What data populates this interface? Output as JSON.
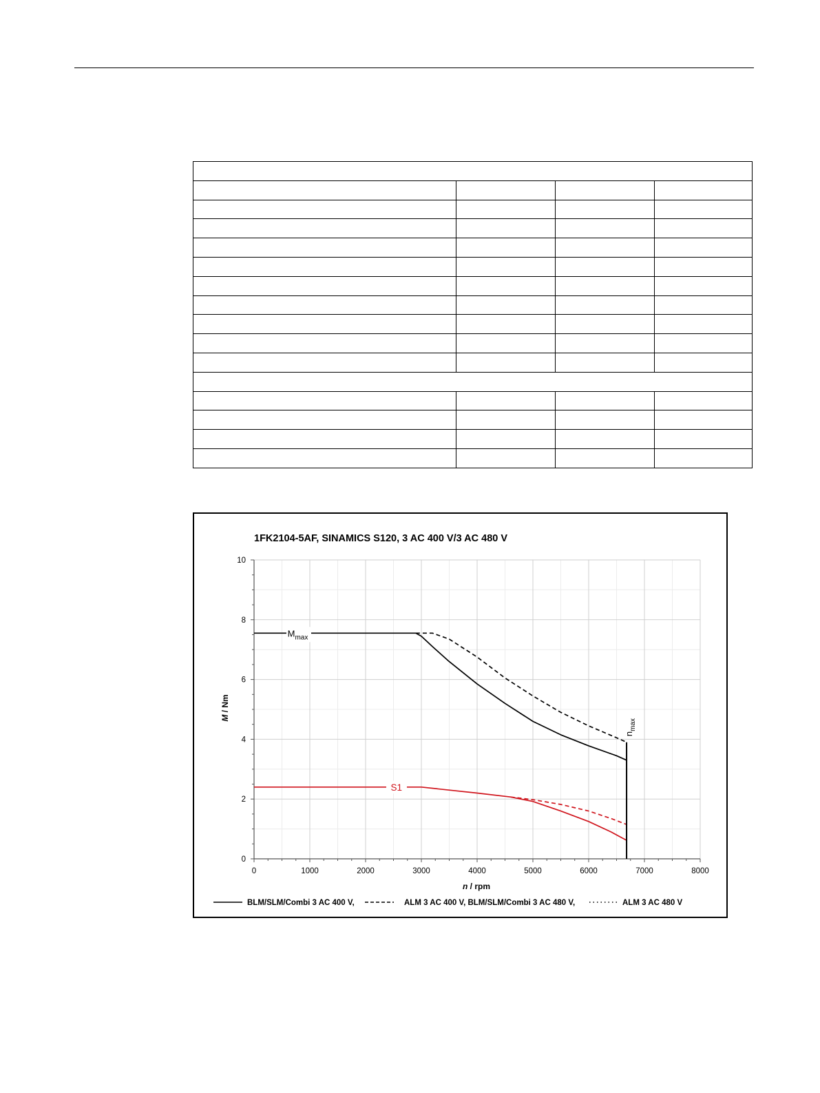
{
  "table": {
    "rows": [
      {
        "type": "full",
        "cells": [
          ""
        ]
      },
      {
        "type": "split",
        "cells": [
          "",
          "",
          "",
          ""
        ]
      },
      {
        "type": "split",
        "cells": [
          "",
          "",
          "",
          ""
        ]
      },
      {
        "type": "split",
        "cells": [
          "",
          "",
          "",
          ""
        ]
      },
      {
        "type": "split",
        "cells": [
          "",
          "",
          "",
          ""
        ]
      },
      {
        "type": "split",
        "cells": [
          "",
          "",
          "",
          ""
        ]
      },
      {
        "type": "split",
        "cells": [
          "",
          "",
          "",
          ""
        ]
      },
      {
        "type": "split",
        "cells": [
          "",
          "",
          "",
          ""
        ]
      },
      {
        "type": "split",
        "cells": [
          "",
          "",
          "",
          ""
        ]
      },
      {
        "type": "split",
        "cells": [
          "",
          "",
          "",
          ""
        ]
      },
      {
        "type": "split",
        "cells": [
          "",
          "",
          "",
          ""
        ]
      },
      {
        "type": "full",
        "cells": [
          ""
        ]
      },
      {
        "type": "split",
        "cells": [
          "",
          "",
          "",
          ""
        ]
      },
      {
        "type": "split",
        "cells": [
          "",
          "",
          "",
          ""
        ]
      },
      {
        "type": "split",
        "cells": [
          "",
          "",
          "",
          ""
        ]
      },
      {
        "type": "split",
        "cells": [
          "",
          "",
          "",
          ""
        ]
      }
    ]
  },
  "chart_data": {
    "type": "line",
    "title": "1FK2104-5AF,  SINAMICS S120,  3 AC 400 V/3 AC 480 V",
    "xlabel_italic": "n",
    "xlabel_rest": " / rpm",
    "ylabel_italic": "M",
    "ylabel_rest": " / Nm",
    "xlim": [
      0,
      8000
    ],
    "ylim": [
      0,
      10
    ],
    "xticks": [
      0,
      1000,
      2000,
      3000,
      4000,
      5000,
      6000,
      7000,
      8000
    ],
    "yticks": [
      0,
      2,
      4,
      6,
      8,
      10
    ],
    "grid": true,
    "series": [
      {
        "name": "BLM/SLM/Combi 3 AC 400 V,",
        "curve": "Mmax",
        "color": "#000000",
        "style": "solid",
        "points": [
          [
            0,
            7.55
          ],
          [
            2900,
            7.55
          ],
          [
            3000,
            7.45
          ],
          [
            3200,
            7.1
          ],
          [
            3500,
            6.6
          ],
          [
            4000,
            5.85
          ],
          [
            4500,
            5.2
          ],
          [
            5000,
            4.6
          ],
          [
            5500,
            4.15
          ],
          [
            6000,
            3.78
          ],
          [
            6500,
            3.45
          ],
          [
            6680,
            3.3
          ]
        ]
      },
      {
        "name": "ALM 3 AC 400 V, BLM/SLM/Combi 3 AC 480 V,",
        "curve": "Mmax",
        "color": "#000000",
        "style": "dashed",
        "points": [
          [
            2900,
            7.55
          ],
          [
            3200,
            7.55
          ],
          [
            3500,
            7.35
          ],
          [
            4000,
            6.75
          ],
          [
            4500,
            6.05
          ],
          [
            5000,
            5.45
          ],
          [
            5500,
            4.9
          ],
          [
            6000,
            4.45
          ],
          [
            6500,
            4.05
          ],
          [
            6680,
            3.9
          ]
        ]
      },
      {
        "name": "BLM/SLM/Combi 3 AC 400 V,",
        "curve": "S1",
        "color": "#d0141c",
        "style": "solid",
        "points": [
          [
            0,
            2.4
          ],
          [
            3000,
            2.4
          ],
          [
            3500,
            2.3
          ],
          [
            4000,
            2.2
          ],
          [
            4600,
            2.07
          ],
          [
            5000,
            1.92
          ],
          [
            5500,
            1.6
          ],
          [
            6000,
            1.25
          ],
          [
            6400,
            0.9
          ],
          [
            6680,
            0.62
          ]
        ]
      },
      {
        "name": "ALM 3 AC 400 V, BLM/SLM/Combi 3 AC 480 V,",
        "curve": "S1",
        "color": "#d0141c",
        "style": "dashed",
        "points": [
          [
            4600,
            2.07
          ],
          [
            5000,
            1.98
          ],
          [
            5500,
            1.82
          ],
          [
            6000,
            1.6
          ],
          [
            6400,
            1.35
          ],
          [
            6680,
            1.15
          ]
        ]
      }
    ],
    "nmax_line": {
      "x": 6680,
      "y_top": 3.9
    },
    "annotations": {
      "mmax_main": "M",
      "mmax_sub": "max",
      "s1": "S1",
      "nmax_main": "n",
      "nmax_sub": "max"
    },
    "legend": {
      "position": "bottom",
      "entries": [
        {
          "style": "solid",
          "label": "BLM/SLM/Combi 3 AC 400 V,"
        },
        {
          "style": "dashed",
          "label": "ALM 3 AC 400 V, BLM/SLM/Combi 3 AC 480 V,"
        },
        {
          "style": "dotted",
          "label": "ALM 3 AC 480 V"
        }
      ]
    }
  }
}
